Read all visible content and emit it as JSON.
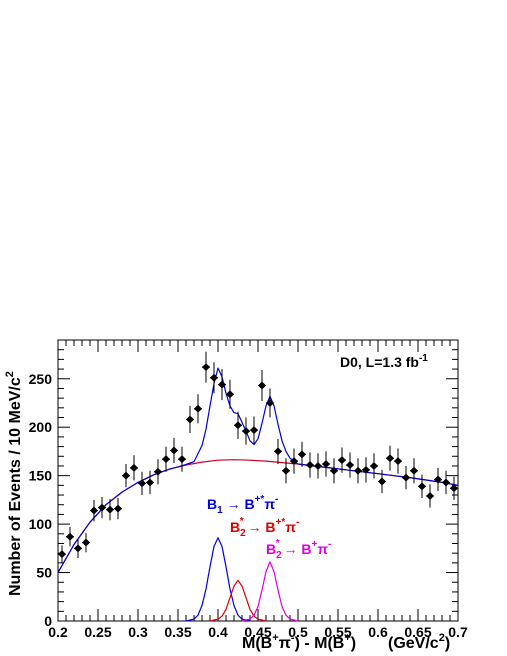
{
  "chart_data": {
    "type": "scatter",
    "xlabel_parts": {
      "base1": "M(B",
      "sup1": "+",
      "mid1": "π",
      "sup2": "-",
      "mid2": ") - M(B",
      "sup3": "+",
      "end": ")",
      "unit_base": "(GeV/c",
      "unit_sup": "2",
      "unit_end": ")"
    },
    "ylabel_parts": {
      "base": "Number of Events / 10 MeV/c",
      "sup": "2"
    },
    "xlim": [
      0.2,
      0.7
    ],
    "ylim": [
      0,
      290
    ],
    "x_ticks": [
      0.2,
      0.25,
      0.3,
      0.35,
      0.4,
      0.45,
      0.5,
      0.55,
      0.6,
      0.65,
      0.7
    ],
    "x_tick_labels": [
      "0.2",
      "0.25",
      "0.3",
      "0.35",
      "0.4",
      "0.45",
      "0.5",
      "0.55",
      "0.6",
      "0.65",
      "0.7"
    ],
    "y_ticks": [
      0,
      50,
      100,
      150,
      200,
      250
    ],
    "y_tick_labels": [
      "0",
      "50",
      "100",
      "150",
      "200",
      "250"
    ],
    "experiment_label": {
      "text": "D0, L=1.3 fb",
      "sup": "-1"
    },
    "annotations": [
      {
        "base": "B",
        "sub": "1",
        "arrow": " → B",
        "sup_a": "+*",
        "pi": "π",
        "sup_b": "-",
        "color": "#0000dd"
      },
      {
        "base": "B",
        "sub": "2",
        "sup0": "*",
        "arrow": " → B",
        "sup_a": "+*",
        "pi": "π",
        "sup_b": "-",
        "color": "#dd0000"
      },
      {
        "base": "B",
        "sub": "2",
        "sup0": "*",
        "arrow": " → B",
        "sup_a": "+",
        "pi": "π",
        "sup_b": "-",
        "color": "#dd00dd"
      }
    ],
    "series": [
      {
        "kind": "points",
        "color": "#000000",
        "x": [
          0.205,
          0.215,
          0.225,
          0.235,
          0.245,
          0.255,
          0.265,
          0.275,
          0.285,
          0.295,
          0.305,
          0.315,
          0.325,
          0.335,
          0.345,
          0.355,
          0.365,
          0.375,
          0.385,
          0.395,
          0.405,
          0.415,
          0.425,
          0.435,
          0.445,
          0.455,
          0.465,
          0.475,
          0.485,
          0.495,
          0.505,
          0.515,
          0.525,
          0.535,
          0.545,
          0.555,
          0.565,
          0.575,
          0.585,
          0.595,
          0.605,
          0.615,
          0.625,
          0.635,
          0.645,
          0.655,
          0.665,
          0.675,
          0.685,
          0.695
        ],
        "y": [
          69,
          87,
          75,
          81,
          114,
          117,
          115,
          116,
          150,
          158,
          142,
          143,
          154,
          167,
          176,
          167,
          208,
          219,
          262,
          251,
          244,
          234,
          202,
          196,
          197,
          243,
          225,
          175,
          155,
          165,
          172,
          161,
          160,
          162,
          155,
          166,
          161,
          155,
          156,
          160,
          144,
          168,
          165,
          148,
          155,
          139,
          129,
          146,
          143,
          137
        ],
        "yerr": [
          9,
          10,
          10,
          10,
          11,
          11,
          11,
          11,
          12,
          13,
          12,
          12,
          13,
          13,
          13,
          13,
          14,
          15,
          16,
          16,
          16,
          15,
          14,
          14,
          14,
          16,
          15,
          13,
          13,
          13,
          13,
          13,
          13,
          13,
          13,
          13,
          13,
          13,
          13,
          13,
          12,
          13,
          13,
          12,
          13,
          12,
          12,
          12,
          12,
          12
        ]
      },
      {
        "kind": "curve",
        "component": "background",
        "color": "#cc0022",
        "x": [
          0.2,
          0.22,
          0.24,
          0.26,
          0.28,
          0.3,
          0.32,
          0.34,
          0.36,
          0.38,
          0.4,
          0.42,
          0.44,
          0.46,
          0.48,
          0.5,
          0.52,
          0.54,
          0.56,
          0.58,
          0.6,
          0.62,
          0.64,
          0.66,
          0.68,
          0.7
        ],
        "y": [
          50,
          79,
          102,
          120,
          133,
          143,
          151,
          157,
          161,
          164,
          166,
          166.5,
          166,
          165,
          163.5,
          162,
          160,
          158,
          156,
          154,
          152,
          150,
          148,
          145.5,
          143,
          140
        ]
      },
      {
        "kind": "curve",
        "component": "B1 peak",
        "color": "#0000dd",
        "x": [
          0.36,
          0.37,
          0.375,
          0.38,
          0.385,
          0.39,
          0.395,
          0.4,
          0.405,
          0.41,
          0.415,
          0.42,
          0.425,
          0.43,
          0.44
        ],
        "y": [
          0,
          2,
          6,
          16,
          33,
          56,
          77,
          86,
          77,
          56,
          33,
          16,
          6,
          2,
          0
        ]
      },
      {
        "kind": "curve",
        "component": "B2* -> B*pi peak",
        "color": "#dd0000",
        "x": [
          0.39,
          0.4,
          0.405,
          0.41,
          0.415,
          0.42,
          0.425,
          0.43,
          0.435,
          0.44,
          0.445,
          0.45,
          0.46
        ],
        "y": [
          0,
          2,
          5,
          12,
          24,
          36,
          42,
          36,
          24,
          12,
          5,
          2,
          0
        ]
      },
      {
        "kind": "curve",
        "component": "B2* -> Bpi peak",
        "color": "#dd00dd",
        "x": [
          0.43,
          0.44,
          0.445,
          0.45,
          0.455,
          0.46,
          0.465,
          0.47,
          0.475,
          0.48,
          0.485,
          0.49,
          0.5
        ],
        "y": [
          0,
          2,
          6,
          15,
          32,
          51,
          61,
          51,
          32,
          15,
          6,
          2,
          0
        ]
      },
      {
        "kind": "curve",
        "component": "total fit",
        "color": "#0000dd",
        "x": [
          0.2,
          0.22,
          0.24,
          0.26,
          0.28,
          0.3,
          0.32,
          0.34,
          0.35,
          0.36,
          0.37,
          0.38,
          0.385,
          0.39,
          0.395,
          0.4,
          0.405,
          0.41,
          0.415,
          0.42,
          0.425,
          0.43,
          0.435,
          0.44,
          0.445,
          0.45,
          0.455,
          0.46,
          0.465,
          0.47,
          0.475,
          0.48,
          0.485,
          0.49,
          0.5,
          0.52,
          0.54,
          0.56,
          0.58,
          0.6,
          0.62,
          0.64,
          0.66,
          0.68,
          0.7
        ],
        "y": [
          50,
          79,
          102,
          120,
          133,
          143,
          151,
          157,
          159,
          161.5,
          164.5,
          181,
          198,
          222,
          245,
          261,
          252,
          235,
          222,
          215,
          214,
          205,
          196,
          186,
          182,
          188,
          204,
          222,
          232,
          222,
          203,
          186,
          175,
          168,
          162,
          160,
          158,
          156,
          154,
          152,
          150,
          148,
          145.5,
          143,
          140
        ]
      }
    ]
  }
}
